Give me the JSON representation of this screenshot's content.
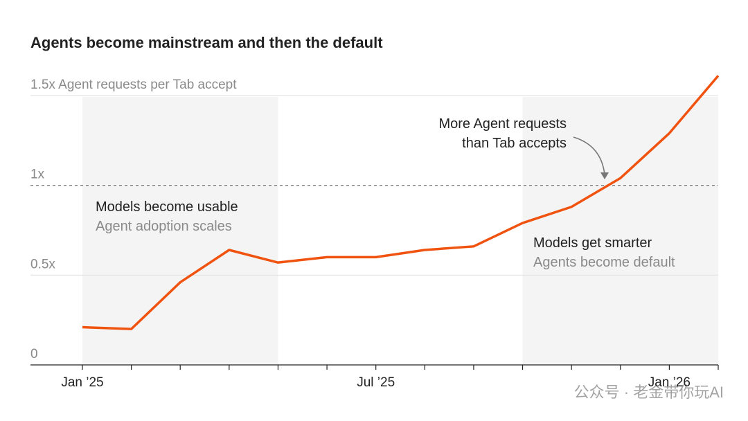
{
  "chart_data": {
    "type": "line",
    "title": "Agents become mainstream and then the default",
    "categories": [
      "Jan ’25",
      null,
      null,
      null,
      null,
      null,
      "Jul ’25",
      null,
      null,
      null,
      null,
      null,
      "Jan ’26",
      null
    ],
    "series": [
      {
        "name": "Agent requests per Tab accept",
        "color": "#f0520f",
        "values": [
          0.21,
          0.2,
          0.46,
          0.64,
          0.57,
          0.6,
          0.6,
          0.64,
          0.66,
          0.79,
          0.88,
          1.04,
          1.29,
          1.61
        ]
      }
    ],
    "ylim": [
      0,
      1.6
    ],
    "yticks": [
      0,
      {
        "value": 0.5,
        "label": "0.5x"
      },
      {
        "value": 1,
        "label": "1x"
      },
      {
        "value": 1.5,
        "label": "1.5x Agent requests per Tab accept"
      }
    ],
    "grid": true,
    "annotations": {
      "crossover": [
        "More Agent requests",
        "than Tab accepts"
      ],
      "phase_1": {
        "title": "Models become usable",
        "subtitle": "Agent adoption scales"
      },
      "phase_2": {
        "title": "Models get smarter",
        "subtitle": "Agents become default"
      }
    },
    "watermark": "公众号 · 老金带你玩AI"
  }
}
